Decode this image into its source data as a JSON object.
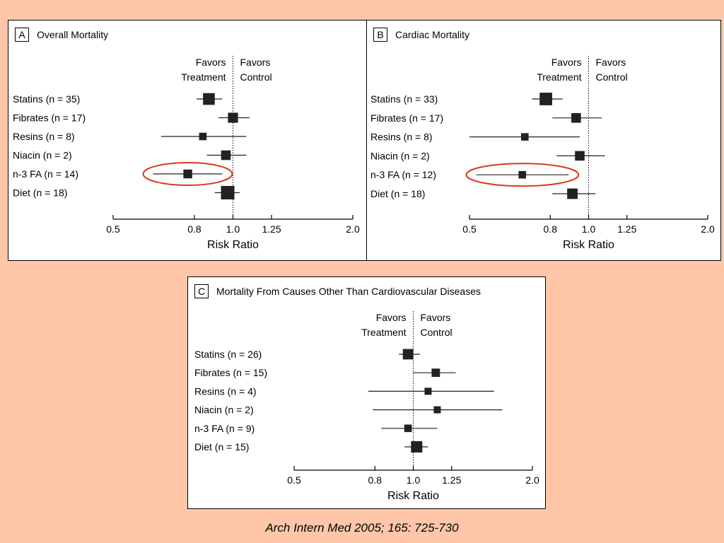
{
  "citation": "Arch Intern Med 2005; 165: 725-730",
  "colors": {
    "background": "#ffc7a8",
    "highlight": "#d9391d",
    "marker": "#222222"
  },
  "chart_data": [
    {
      "type": "forest",
      "panel_label": "A",
      "title": "Overall Mortality",
      "xlabel": "Risk Ratio",
      "favors_left": [
        "Favors",
        "Treatment"
      ],
      "favors_right": [
        "Favors",
        "Control"
      ],
      "x_scale": "log",
      "xlim": [
        0.5,
        2.0
      ],
      "ticks": [
        0.5,
        0.8,
        1.0,
        1.25,
        2.0
      ],
      "tick_labels": [
        "0.5",
        "0.8",
        "1.0",
        "1.25",
        "2.0"
      ],
      "reference_line": 1.0,
      "highlighted": "n-3 FA (n = 14)",
      "rows": [
        {
          "label": "Statins (n = 35)",
          "est": 0.87,
          "lo": 0.81,
          "hi": 0.94,
          "weight": 1.6
        },
        {
          "label": "Fibrates (n = 17)",
          "est": 1.0,
          "lo": 0.92,
          "hi": 1.1,
          "weight": 1.2
        },
        {
          "label": "Resins (n = 8)",
          "est": 0.84,
          "lo": 0.66,
          "hi": 1.08,
          "weight": 0.6
        },
        {
          "label": "Niacin (n = 2)",
          "est": 0.96,
          "lo": 0.86,
          "hi": 1.08,
          "weight": 1.1
        },
        {
          "label": "n-3 FA (n = 14)",
          "est": 0.77,
          "lo": 0.63,
          "hi": 0.94,
          "weight": 0.9
        },
        {
          "label": "Diet (n = 18)",
          "est": 0.97,
          "lo": 0.9,
          "hi": 1.04,
          "weight": 2.0
        }
      ]
    },
    {
      "type": "forest",
      "panel_label": "B",
      "title": "Cardiac Mortality",
      "xlabel": "Risk Ratio",
      "favors_left": [
        "Favors",
        "Treatment"
      ],
      "favors_right": [
        "Favors",
        "Control"
      ],
      "x_scale": "log",
      "xlim": [
        0.5,
        2.0
      ],
      "ticks": [
        0.5,
        0.8,
        1.0,
        1.25,
        2.0
      ],
      "tick_labels": [
        "0.5",
        "0.8",
        "1.0",
        "1.25",
        "2.0"
      ],
      "reference_line": 1.0,
      "highlighted": "n-3 FA (n = 12)",
      "rows": [
        {
          "label": "Statins (n = 33)",
          "est": 0.78,
          "lo": 0.72,
          "hi": 0.86,
          "weight": 1.8
        },
        {
          "label": "Fibrates (n = 17)",
          "est": 0.93,
          "lo": 0.81,
          "hi": 1.08,
          "weight": 1.1
        },
        {
          "label": "Resins (n = 8)",
          "est": 0.69,
          "lo": 0.5,
          "hi": 0.95,
          "weight": 0.6
        },
        {
          "label": "Niacin (n = 2)",
          "est": 0.95,
          "lo": 0.83,
          "hi": 1.1,
          "weight": 1.1
        },
        {
          "label": "n-3 FA (n = 12)",
          "est": 0.68,
          "lo": 0.52,
          "hi": 0.89,
          "weight": 0.6
        },
        {
          "label": "Diet (n = 18)",
          "est": 0.91,
          "lo": 0.81,
          "hi": 1.04,
          "weight": 1.3
        }
      ]
    },
    {
      "type": "forest",
      "panel_label": "C",
      "title": "Mortality From Causes Other Than Cardiovascular Diseases",
      "xlabel": "Risk Ratio",
      "favors_left": [
        "Favors",
        "Treatment"
      ],
      "favors_right": [
        "Favors",
        "Control"
      ],
      "x_scale": "log",
      "xlim": [
        0.5,
        2.0
      ],
      "ticks": [
        0.5,
        0.8,
        1.0,
        1.25,
        2.0
      ],
      "tick_labels": [
        "0.5",
        "0.8",
        "1.0",
        "1.25",
        "2.0"
      ],
      "reference_line": 1.0,
      "rows": [
        {
          "label": "Statins (n = 26)",
          "est": 0.97,
          "lo": 0.92,
          "hi": 1.04,
          "weight": 1.3
        },
        {
          "label": "Fibrates (n = 15)",
          "est": 1.14,
          "lo": 1.0,
          "hi": 1.28,
          "weight": 0.8
        },
        {
          "label": "Resins (n = 4)",
          "est": 1.09,
          "lo": 0.77,
          "hi": 1.6,
          "weight": 0.5
        },
        {
          "label": "Niacin (n = 2)",
          "est": 1.15,
          "lo": 0.79,
          "hi": 1.68,
          "weight": 0.5
        },
        {
          "label": "n-3 FA (n = 9)",
          "est": 0.97,
          "lo": 0.83,
          "hi": 1.15,
          "weight": 0.6
        },
        {
          "label": "Diet (n = 15)",
          "est": 1.02,
          "lo": 0.95,
          "hi": 1.09,
          "weight": 1.5
        }
      ]
    }
  ]
}
